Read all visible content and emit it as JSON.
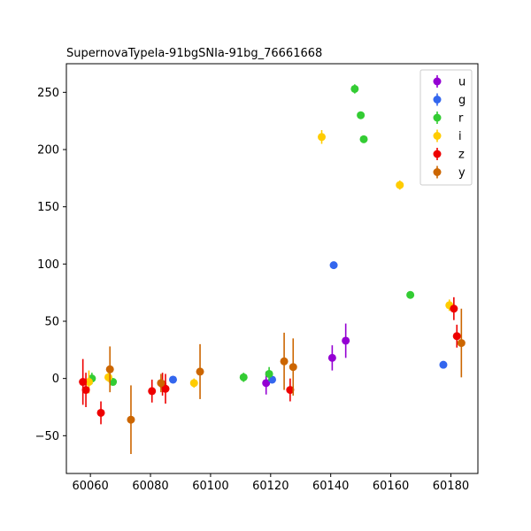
{
  "chart_data": {
    "type": "scatter",
    "title": "SupernovaTypeIa-91bgSNIa-91bg_76661668",
    "xlabel": "",
    "ylabel": "",
    "xlim": [
      60052,
      60189
    ],
    "ylim": [
      -83,
      275
    ],
    "xticks": [
      60060,
      60080,
      60100,
      60120,
      60140,
      60160,
      60180
    ],
    "yticks": [
      -50,
      0,
      50,
      100,
      150,
      200,
      250
    ],
    "grid": false,
    "legend_position": "top-right",
    "series": [
      {
        "name": "u",
        "color": "#9400d3",
        "points": [
          {
            "x": 60118.5,
            "y": -4,
            "err": 10
          },
          {
            "x": 60140.5,
            "y": 18,
            "err": 11
          },
          {
            "x": 60145,
            "y": 33,
            "err": 15
          }
        ]
      },
      {
        "name": "g",
        "color": "#3366ee",
        "points": [
          {
            "x": 60087.5,
            "y": -1,
            "err": 2
          },
          {
            "x": 60120.5,
            "y": -1,
            "err": 2
          },
          {
            "x": 60141,
            "y": 99,
            "err": 3
          },
          {
            "x": 60177.5,
            "y": 12,
            "err": 2
          }
        ]
      },
      {
        "name": "r",
        "color": "#33cc33",
        "points": [
          {
            "x": 60060.5,
            "y": 0,
            "err": 5
          },
          {
            "x": 60067.5,
            "y": -3,
            "err": 3
          },
          {
            "x": 60111,
            "y": 1,
            "err": 4
          },
          {
            "x": 60119.5,
            "y": 4,
            "err": 6
          },
          {
            "x": 60148,
            "y": 253,
            "err": 4
          },
          {
            "x": 60150,
            "y": 230,
            "err": 3
          },
          {
            "x": 60151,
            "y": 209,
            "err": 3
          },
          {
            "x": 60166.5,
            "y": 73,
            "err": 3
          }
        ]
      },
      {
        "name": "i",
        "color": "#ffcc00",
        "points": [
          {
            "x": 60059.5,
            "y": -3,
            "err": 10
          },
          {
            "x": 60066,
            "y": 1,
            "err": 4
          },
          {
            "x": 60094.5,
            "y": -4,
            "err": 4
          },
          {
            "x": 60137,
            "y": 211,
            "err": 6
          },
          {
            "x": 60163,
            "y": 169,
            "err": 4
          },
          {
            "x": 60179.5,
            "y": 64,
            "err": 5
          }
        ]
      },
      {
        "name": "z",
        "color": "#ee0000",
        "points": [
          {
            "x": 60057.5,
            "y": -3,
            "err": 20
          },
          {
            "x": 60058.5,
            "y": -10,
            "err": 15
          },
          {
            "x": 60063.5,
            "y": -30,
            "err": 10
          },
          {
            "x": 60080.5,
            "y": -11,
            "err": 10
          },
          {
            "x": 60084,
            "y": -5,
            "err": 10
          },
          {
            "x": 60085,
            "y": -9,
            "err": 13
          },
          {
            "x": 60126.5,
            "y": -10,
            "err": 10
          },
          {
            "x": 60181,
            "y": 61,
            "err": 10
          },
          {
            "x": 60182,
            "y": 37,
            "err": 10
          }
        ]
      },
      {
        "name": "y",
        "color": "#cc6600",
        "points": [
          {
            "x": 60066.5,
            "y": 8,
            "err": 20
          },
          {
            "x": 60073.5,
            "y": -36,
            "err": 30
          },
          {
            "x": 60083.5,
            "y": -4,
            "err": 8
          },
          {
            "x": 60096.5,
            "y": 6,
            "err": 24
          },
          {
            "x": 60124.5,
            "y": 15,
            "err": 25
          },
          {
            "x": 60127.5,
            "y": 10,
            "err": 25
          },
          {
            "x": 60183.5,
            "y": 31,
            "err": 30
          }
        ]
      }
    ]
  }
}
